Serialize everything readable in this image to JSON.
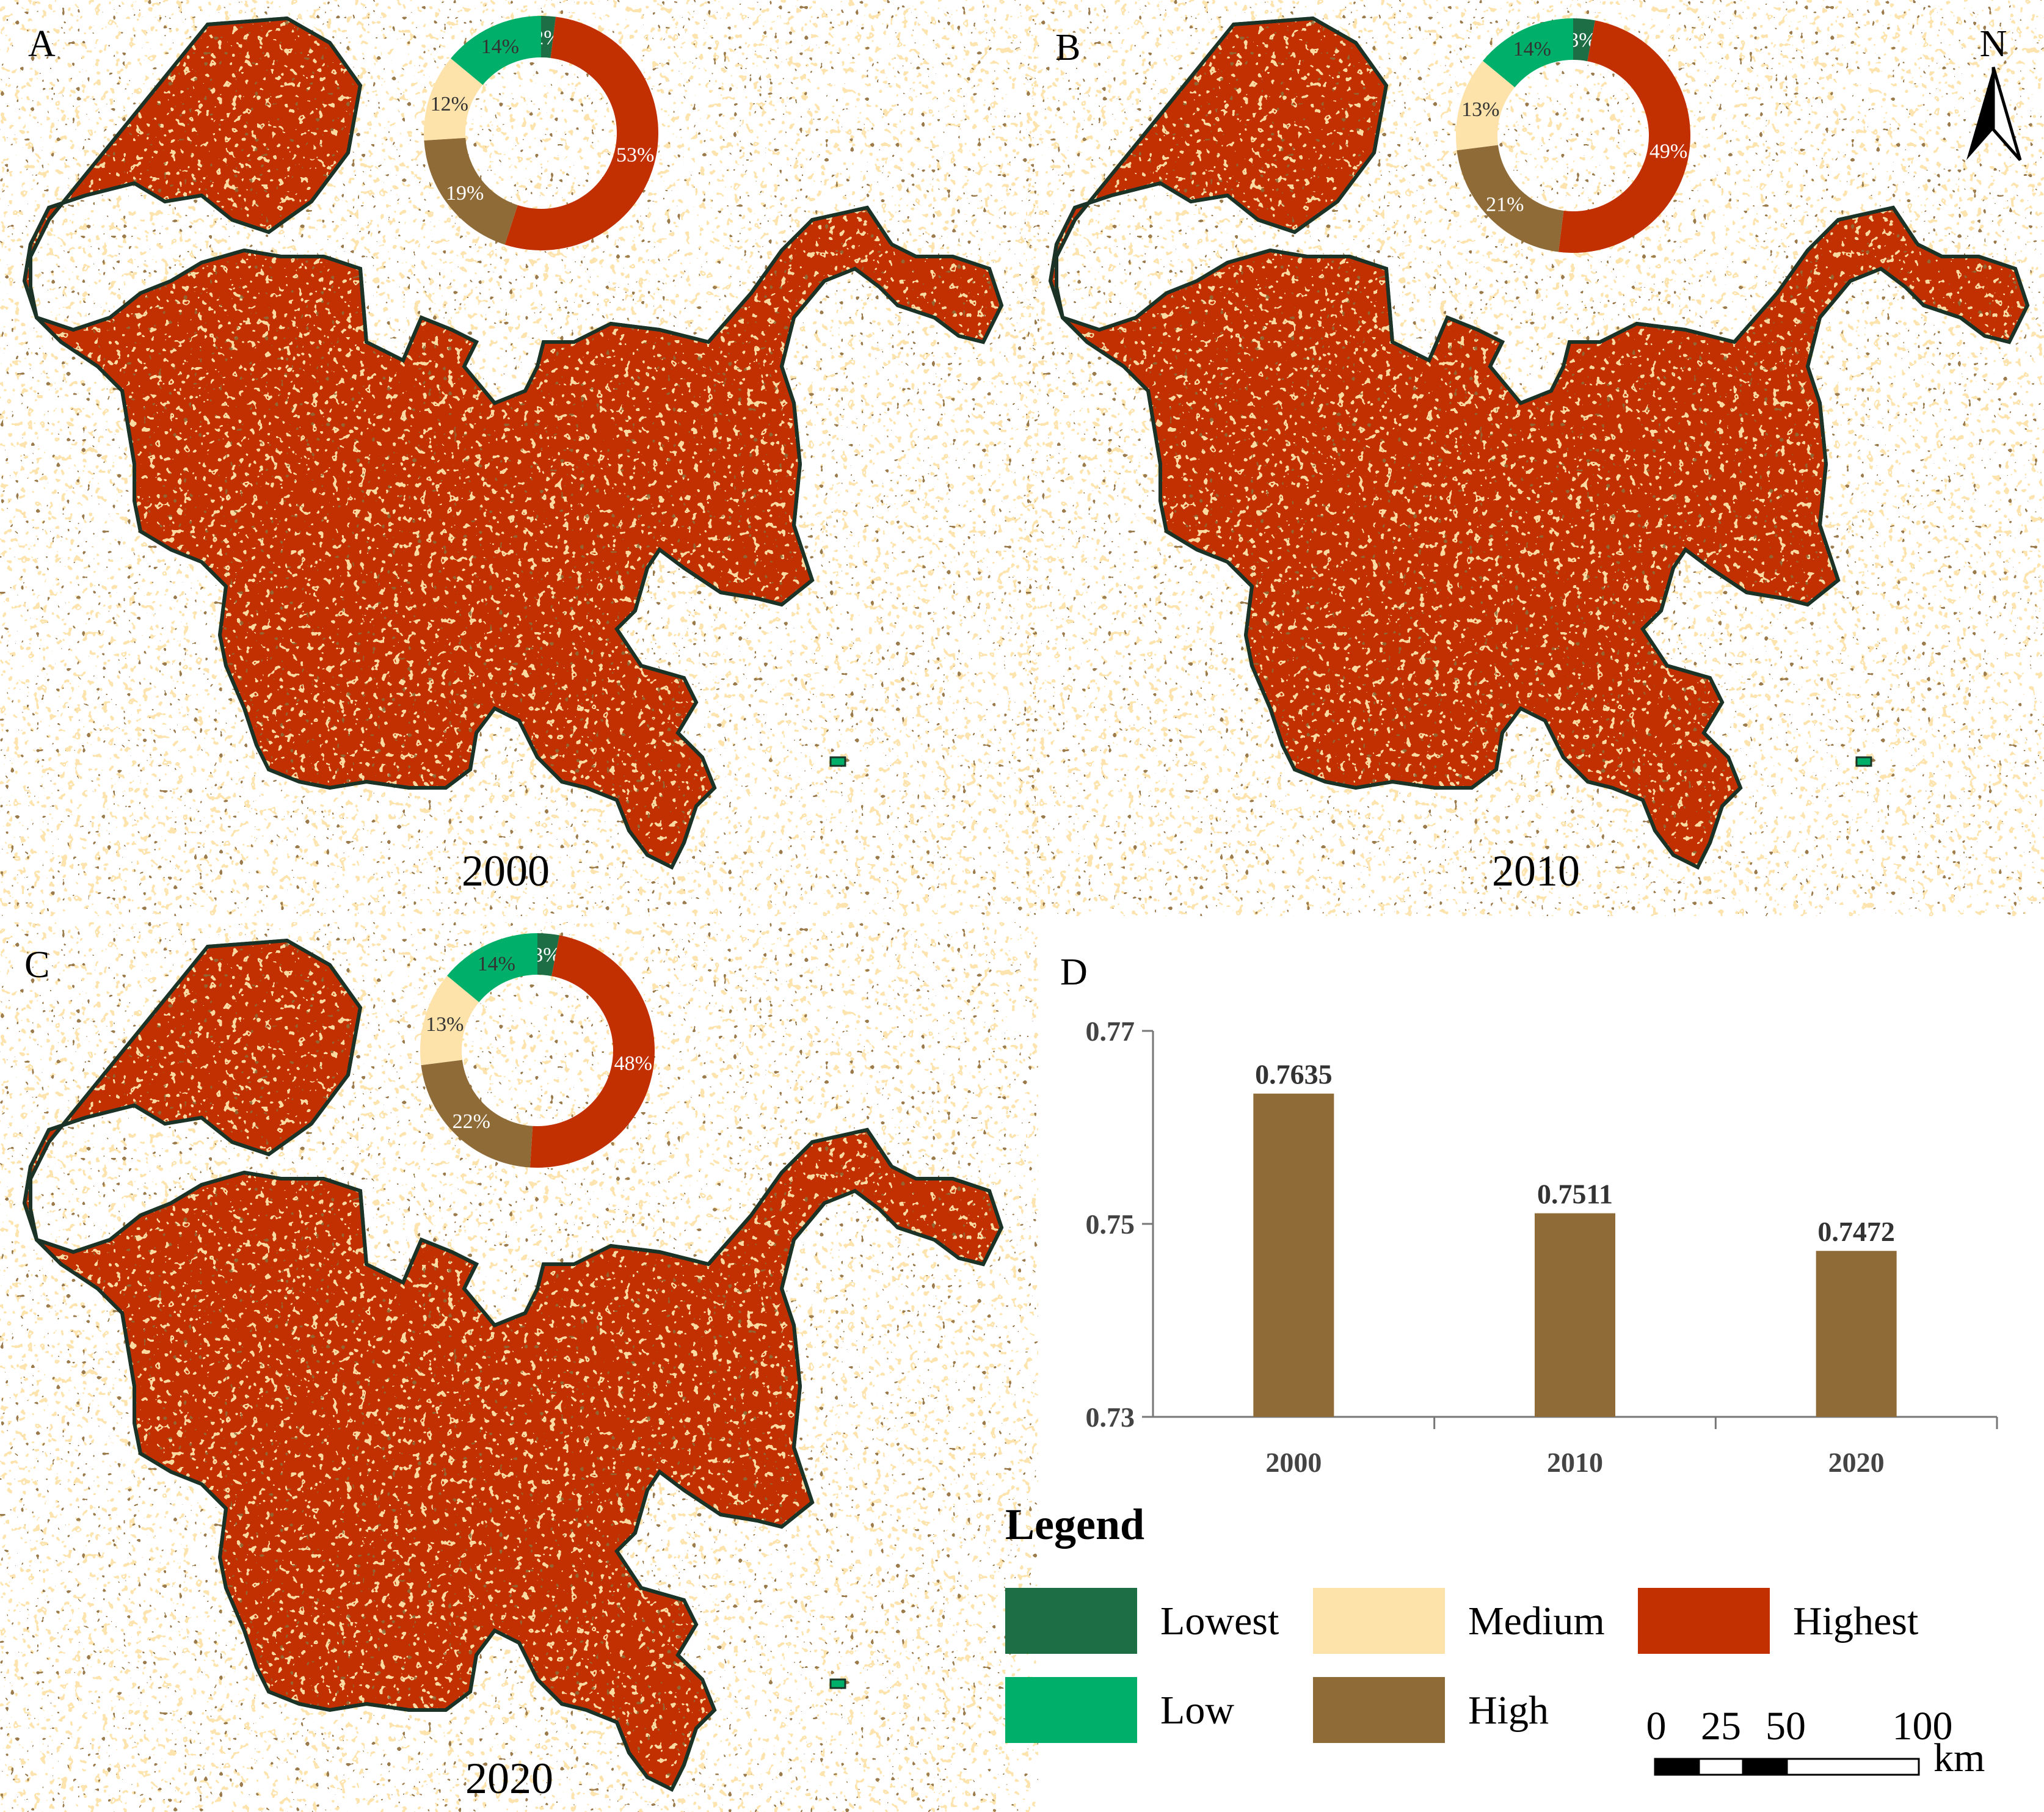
{
  "colors": {
    "lowest": "#1e6e45",
    "low": "#00b06a",
    "medium": "#fde3aa",
    "high": "#8f6b38",
    "highest": "#c22f00",
    "bar": "#8f6b38",
    "border": "#1a3326"
  },
  "panels": [
    {
      "letter": "A",
      "year": "2000",
      "donut": [
        {
          "category": "Lowest",
          "value": 2,
          "label": "2%"
        },
        {
          "category": "Highest",
          "value": 53,
          "label": "53%"
        },
        {
          "category": "High",
          "value": 19,
          "label": "19%"
        },
        {
          "category": "Medium",
          "value": 12,
          "label": "12%"
        },
        {
          "category": "Low",
          "value": 14,
          "label": "14%"
        }
      ]
    },
    {
      "letter": "B",
      "year": "2010",
      "donut": [
        {
          "category": "Lowest",
          "value": 3,
          "label": "3%"
        },
        {
          "category": "Highest",
          "value": 49,
          "label": "49%"
        },
        {
          "category": "High",
          "value": 21,
          "label": "21%"
        },
        {
          "category": "Medium",
          "value": 13,
          "label": "13%"
        },
        {
          "category": "Low",
          "value": 14,
          "label": "14%"
        }
      ]
    },
    {
      "letter": "C",
      "year": "2020",
      "donut": [
        {
          "category": "Lowest",
          "value": 3,
          "label": "3%"
        },
        {
          "category": "Highest",
          "value": 48,
          "label": "48%"
        },
        {
          "category": "High",
          "value": 22,
          "label": "22%"
        },
        {
          "category": "Medium",
          "value": 13,
          "label": "13%"
        },
        {
          "category": "Low",
          "value": 14,
          "label": "14%"
        }
      ]
    }
  ],
  "chart_data": {
    "type": "bar",
    "panel_letter": "D",
    "categories": [
      "2000",
      "2010",
      "2020"
    ],
    "values": [
      0.7635,
      0.7511,
      0.7472
    ],
    "value_labels": [
      "0.7635",
      "0.7511",
      "0.7472"
    ],
    "ylim": [
      0.73,
      0.77
    ],
    "yticks": [
      0.73,
      0.75,
      0.77
    ],
    "ytick_labels": [
      "0.73",
      "0.75",
      "0.77"
    ],
    "grid": false
  },
  "legend": {
    "title": "Legend",
    "items": [
      {
        "key": "lowest",
        "label": "Lowest"
      },
      {
        "key": "medium",
        "label": "Medium"
      },
      {
        "key": "highest",
        "label": "Highest"
      },
      {
        "key": "low",
        "label": "Low"
      },
      {
        "key": "high",
        "label": "High"
      }
    ]
  },
  "north_arrow": {
    "label": "N"
  },
  "scale_bar": {
    "ticks": [
      "0",
      "25",
      "50",
      "100"
    ],
    "unit": "km"
  }
}
